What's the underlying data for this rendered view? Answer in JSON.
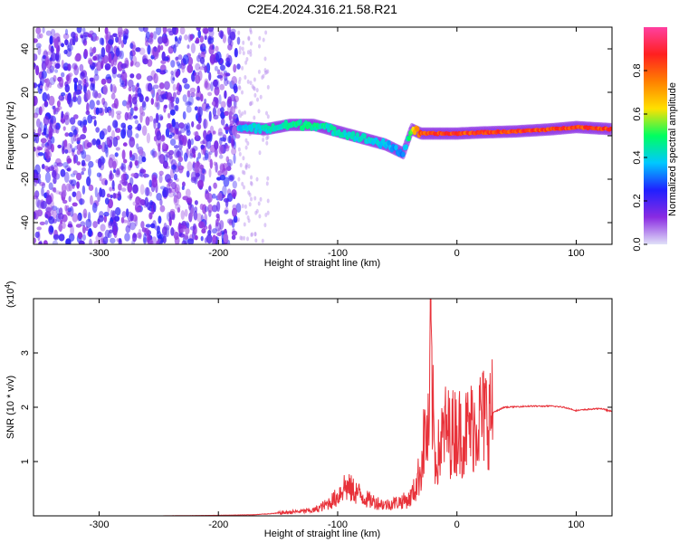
{
  "figure_title": "C2E4.2024.316.21.58.R21",
  "colors": {
    "snr_line": "#e8323a",
    "blob_background": "#7a2cf0",
    "blob_light": "#d9c2f7",
    "frame": "#000000"
  },
  "chart_data": [
    {
      "type": "heatmap",
      "title": "C2E4.2024.316.21.58.R21",
      "xlabel": "Height of straight line (km)",
      "ylabel": "Frequency (Hz)",
      "xlim": [
        -355,
        130
      ],
      "ylim": [
        -50,
        50
      ],
      "x_ticks": [
        -300,
        -200,
        -100,
        0,
        100
      ],
      "x_tick_labels": [
        "-300",
        "-200",
        "-100",
        "0",
        "100"
      ],
      "y_ticks": [
        -40,
        -20,
        0,
        20,
        40
      ],
      "y_tick_labels": [
        "-40",
        "-20",
        "0",
        "20",
        "40"
      ],
      "colorbar": {
        "label": "Normalized spectral amplitude",
        "range": [
          0,
          1
        ],
        "ticks": [
          0.0,
          0.2,
          0.4,
          0.6,
          0.8
        ],
        "tick_labels": [
          "0.0",
          "0.2",
          "0.4",
          "0.6",
          "0.8"
        ],
        "colormap": [
          "#e0e0f8",
          "#8a2be2",
          "#2020ff",
          "#00c8ff",
          "#00ff60",
          "#ffe000",
          "#ff8000",
          "#ff2020",
          "#ff40a0"
        ]
      },
      "noise_region_x": [
        -355,
        -183
      ],
      "ridge": {
        "x": [
          -183,
          -160,
          -140,
          -120,
          -100,
          -80,
          -60,
          -45,
          -38,
          -30,
          -20,
          0,
          20,
          50,
          80,
          100,
          130
        ],
        "freq": [
          4,
          3,
          5,
          5,
          2,
          -1,
          -4,
          -8,
          3,
          1,
          1,
          1,
          1.5,
          2,
          3,
          4,
          3
        ],
        "amplitude": [
          0.4,
          0.45,
          0.5,
          0.5,
          0.45,
          0.45,
          0.4,
          0.35,
          0.6,
          0.9,
          0.9,
          0.9,
          0.9,
          0.9,
          0.9,
          0.9,
          0.9
        ]
      }
    },
    {
      "type": "line",
      "xlabel": "Height of straight line (km)",
      "ylabel": "SNR (10 * v/v)",
      "y_multiplier_label": "(x10",
      "y_multiplier_exponent": "4",
      "y_multiplier_close": ")",
      "xlim": [
        -355,
        130
      ],
      "ylim": [
        0,
        40000
      ],
      "x_ticks": [
        -300,
        -200,
        -100,
        0,
        100
      ],
      "x_tick_labels": [
        "-300",
        "-200",
        "-100",
        "0",
        "100"
      ],
      "y_ticks": [
        10000,
        20000,
        30000
      ],
      "y_tick_labels": [
        "1",
        "2",
        "3"
      ],
      "series": [
        {
          "x": [
            -355,
            -300,
            -250,
            -200,
            -170,
            -150,
            -120,
            -110,
            -100,
            -95,
            -85,
            -75,
            -60,
            -50,
            -40,
            -35,
            -30,
            -27,
            -25,
            -23,
            -22,
            -21,
            -20,
            -19,
            -18,
            -15,
            -10,
            -5,
            0,
            5,
            10,
            15,
            20,
            30,
            40,
            60,
            80,
            90,
            100,
            110,
            120,
            130
          ],
          "y": [
            0,
            0,
            0,
            100,
            200,
            500,
            1000,
            2000,
            3500,
            5500,
            4500,
            3000,
            2000,
            2500,
            3000,
            5000,
            9000,
            15000,
            14000,
            16000,
            40000,
            22000,
            18000,
            14000,
            10000,
            12000,
            16000,
            15000,
            16000,
            15000,
            16000,
            17000,
            18000,
            19000,
            20000,
            20200,
            20200,
            20000,
            19400,
            19600,
            19800,
            19200
          ]
        }
      ]
    }
  ]
}
